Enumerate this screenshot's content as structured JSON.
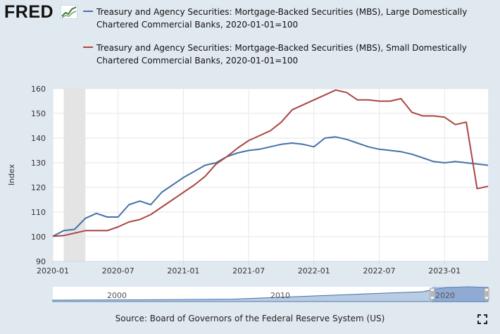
{
  "logo": {
    "text": "FRED",
    "mark_icon": "fred-chart-mark-icon"
  },
  "colors": {
    "series1": "#4572a7",
    "series2": "#aa4643",
    "plot_bg": "#ffffff",
    "page_bg": "#e1e9f0",
    "recession": "#e4e4e4",
    "grid": "#e6e6e6"
  },
  "source": "Source: Board of Governors of the Federal Reserve System (US)",
  "icons": {
    "fullscreen": "fullscreen-icon"
  },
  "navigator": {
    "labels": [
      "2000",
      "2010",
      "2020"
    ]
  },
  "chart_data": {
    "type": "line",
    "title": "",
    "xlabel": "",
    "ylabel": "Index",
    "ylim": [
      90,
      160
    ],
    "yticks": [
      90,
      100,
      110,
      120,
      130,
      140,
      150,
      160
    ],
    "xlim": [
      "2020-01",
      "2023-05"
    ],
    "xticks": [
      "2020-01",
      "2020-07",
      "2021-01",
      "2021-07",
      "2022-01",
      "2022-07",
      "2023-01"
    ],
    "grid": true,
    "legend": "top",
    "recession_shading": [
      [
        "2020-02",
        "2020-04"
      ]
    ],
    "x": [
      "2020-01",
      "2020-02",
      "2020-03",
      "2020-04",
      "2020-05",
      "2020-06",
      "2020-07",
      "2020-08",
      "2020-09",
      "2020-10",
      "2020-11",
      "2020-12",
      "2021-01",
      "2021-02",
      "2021-03",
      "2021-04",
      "2021-05",
      "2021-06",
      "2021-07",
      "2021-08",
      "2021-09",
      "2021-10",
      "2021-11",
      "2021-12",
      "2022-01",
      "2022-02",
      "2022-03",
      "2022-04",
      "2022-05",
      "2022-06",
      "2022-07",
      "2022-08",
      "2022-09",
      "2022-10",
      "2022-11",
      "2022-12",
      "2023-01",
      "2023-02",
      "2023-03",
      "2023-04",
      "2023-05"
    ],
    "series": [
      {
        "name": "Treasury and Agency Securities: Mortgage-Backed Securities (MBS), Large Domestically Chartered Commercial Banks, 2020-01-01=100",
        "values": [
          100.2,
          102.5,
          103.0,
          107.5,
          109.5,
          108.0,
          108.0,
          113.0,
          114.5,
          113.0,
          118.0,
          121.0,
          124.0,
          126.5,
          129.0,
          130.0,
          132.5,
          134.0,
          135.0,
          135.5,
          136.5,
          137.5,
          138.0,
          137.5,
          136.5,
          140.0,
          140.5,
          139.5,
          138.0,
          136.5,
          135.5,
          135.0,
          134.5,
          133.5,
          132.0,
          130.5,
          130.0,
          130.5,
          130.0,
          129.5,
          129.0
        ]
      },
      {
        "name": "Treasury and Agency Securities: Mortgage-Backed Securities (MBS), Small Domestically Chartered Commercial Banks, 2020-01-01=100",
        "values": [
          100.2,
          100.5,
          101.5,
          102.5,
          102.5,
          102.5,
          104.0,
          106.0,
          107.0,
          109.0,
          112.0,
          115.0,
          118.0,
          121.0,
          124.5,
          129.5,
          132.5,
          136.0,
          139.0,
          141.0,
          143.0,
          146.5,
          151.5,
          153.5,
          155.5,
          157.5,
          159.5,
          158.5,
          155.5,
          155.5,
          155.0,
          155.0,
          156.0,
          150.5,
          149.0,
          149.0,
          148.5,
          145.5,
          146.5,
          119.5,
          120.5
        ]
      }
    ]
  }
}
